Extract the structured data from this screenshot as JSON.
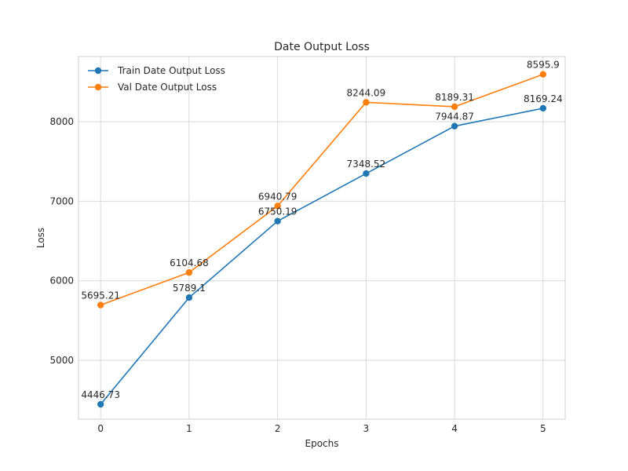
{
  "chart_data": {
    "type": "line",
    "title": "Date Output Loss",
    "xlabel": "Epochs",
    "ylabel": "Loss",
    "x": [
      0,
      1,
      2,
      3,
      4,
      5
    ],
    "xlim": [
      -0.25,
      5.25
    ],
    "ylim": [
      4260,
      8820
    ],
    "xticks": [
      0,
      1,
      2,
      3,
      4,
      5
    ],
    "yticks": [
      5000,
      6000,
      7000,
      8000
    ],
    "grid": true,
    "legend_position": "top-left",
    "series": [
      {
        "name": "Train Date Output Loss",
        "color": "#1f77b4",
        "values": [
          4446.73,
          5789.1,
          6750.19,
          7348.52,
          7944.87,
          8169.24
        ],
        "labels": [
          "4446.73",
          "5789.1",
          "6750.19",
          "7348.52",
          "7944.87",
          "8169.24"
        ]
      },
      {
        "name": "Val Date Output Loss",
        "color": "#ff7f0e",
        "values": [
          5695.21,
          6104.68,
          6940.79,
          8244.09,
          8189.31,
          8595.9
        ],
        "labels": [
          "5695.21",
          "6104.68",
          "6940.79",
          "8244.09",
          "8189.31",
          "8595.9"
        ]
      }
    ]
  }
}
